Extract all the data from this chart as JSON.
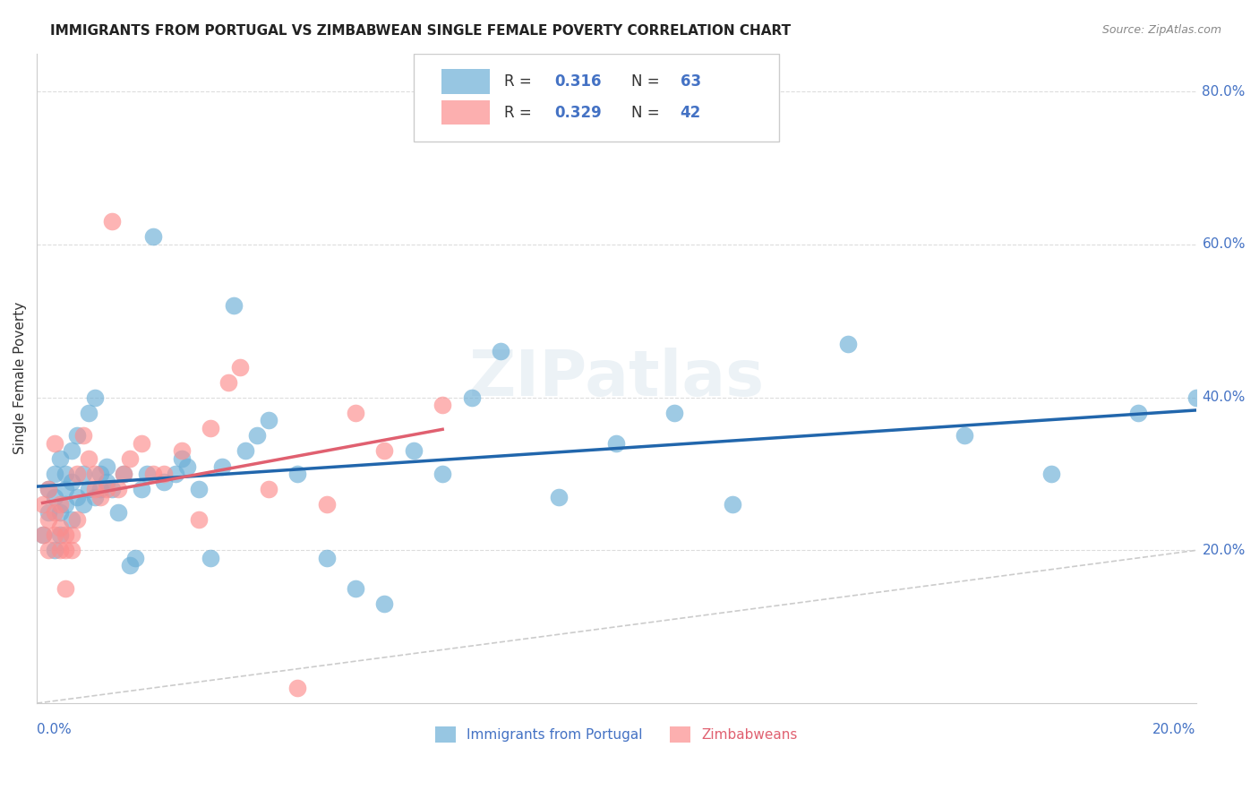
{
  "title": "IMMIGRANTS FROM PORTUGAL VS ZIMBABWEAN SINGLE FEMALE POVERTY CORRELATION CHART",
  "source": "Source: ZipAtlas.com",
  "ylabel": "Single Female Poverty",
  "legend_label1": "Immigrants from Portugal",
  "legend_label2": "Zimbabweans",
  "blue_color": "#6baed6",
  "pink_color": "#fc8d8d",
  "blue_line_color": "#2166ac",
  "pink_line_color": "#e06070",
  "dashed_line_color": "#cccccc",
  "R_blue": 0.316,
  "N_blue": 63,
  "R_pink": 0.329,
  "N_pink": 42,
  "xlim": [
    0.0,
    0.2
  ],
  "ylim": [
    0.0,
    0.85
  ],
  "blue_x": [
    0.001,
    0.002,
    0.002,
    0.003,
    0.003,
    0.003,
    0.004,
    0.004,
    0.004,
    0.005,
    0.005,
    0.005,
    0.006,
    0.006,
    0.006,
    0.007,
    0.007,
    0.008,
    0.008,
    0.009,
    0.009,
    0.01,
    0.01,
    0.011,
    0.011,
    0.012,
    0.012,
    0.013,
    0.014,
    0.015,
    0.016,
    0.017,
    0.018,
    0.019,
    0.02,
    0.022,
    0.024,
    0.025,
    0.026,
    0.028,
    0.03,
    0.032,
    0.034,
    0.036,
    0.038,
    0.04,
    0.045,
    0.05,
    0.055,
    0.06,
    0.065,
    0.07,
    0.075,
    0.08,
    0.09,
    0.1,
    0.11,
    0.12,
    0.14,
    0.16,
    0.175,
    0.19,
    0.2
  ],
  "blue_y": [
    0.22,
    0.25,
    0.28,
    0.2,
    0.27,
    0.3,
    0.22,
    0.25,
    0.32,
    0.26,
    0.28,
    0.3,
    0.24,
    0.29,
    0.33,
    0.27,
    0.35,
    0.26,
    0.3,
    0.28,
    0.38,
    0.27,
    0.4,
    0.28,
    0.3,
    0.29,
    0.31,
    0.28,
    0.25,
    0.3,
    0.18,
    0.19,
    0.28,
    0.3,
    0.61,
    0.29,
    0.3,
    0.32,
    0.31,
    0.28,
    0.19,
    0.31,
    0.52,
    0.33,
    0.35,
    0.37,
    0.3,
    0.19,
    0.15,
    0.13,
    0.33,
    0.3,
    0.4,
    0.46,
    0.27,
    0.34,
    0.38,
    0.26,
    0.47,
    0.35,
    0.3,
    0.38,
    0.4
  ],
  "pink_x": [
    0.001,
    0.001,
    0.002,
    0.002,
    0.002,
    0.003,
    0.003,
    0.003,
    0.004,
    0.004,
    0.004,
    0.005,
    0.005,
    0.005,
    0.006,
    0.006,
    0.007,
    0.007,
    0.008,
    0.009,
    0.01,
    0.01,
    0.011,
    0.012,
    0.013,
    0.014,
    0.015,
    0.016,
    0.018,
    0.02,
    0.022,
    0.025,
    0.028,
    0.03,
    0.033,
    0.035,
    0.04,
    0.045,
    0.05,
    0.055,
    0.06,
    0.07
  ],
  "pink_y": [
    0.22,
    0.26,
    0.2,
    0.24,
    0.28,
    0.22,
    0.25,
    0.34,
    0.2,
    0.23,
    0.26,
    0.2,
    0.22,
    0.15,
    0.2,
    0.22,
    0.3,
    0.24,
    0.35,
    0.32,
    0.28,
    0.3,
    0.27,
    0.28,
    0.63,
    0.28,
    0.3,
    0.32,
    0.34,
    0.3,
    0.3,
    0.33,
    0.24,
    0.36,
    0.42,
    0.44,
    0.28,
    0.02,
    0.26,
    0.38,
    0.33,
    0.39
  ],
  "y_ticks": [
    0.2,
    0.4,
    0.6,
    0.8
  ],
  "y_tick_labels": [
    "20.0%",
    "40.0%",
    "60.0%",
    "80.0%"
  ],
  "r_n_color": "#4472c4",
  "label_color_blue": "#4472c4",
  "label_color_pink": "#e06070",
  "watermark": "ZIPatlas"
}
